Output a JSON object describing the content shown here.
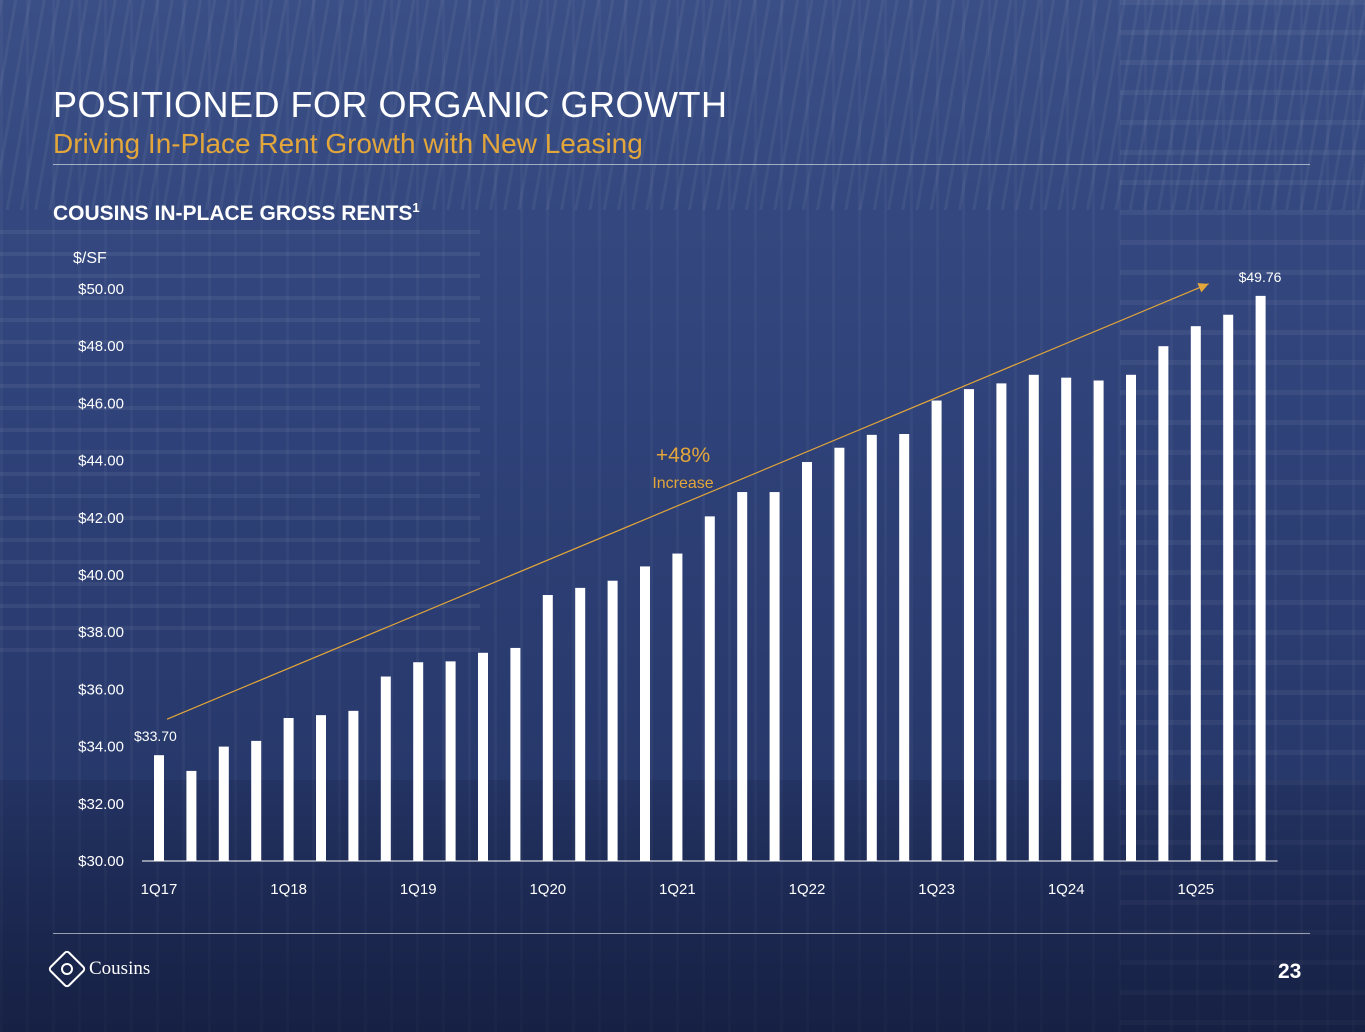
{
  "header": {
    "title": "POSITIONED FOR ORGANIC GROWTH",
    "subtitle": "Driving In-Place Rent Growth with New Leasing"
  },
  "footer": {
    "logo_text": "Cousins",
    "page_number": "23"
  },
  "colors": {
    "accent": "#e3a63a",
    "bar": "#ffffff",
    "text": "#ffffff"
  },
  "chart_data": {
    "type": "bar",
    "title": "COUSINS IN-PLACE GROSS RENTS",
    "title_footnote": "1",
    "ylabel": "$/SF",
    "ylim": [
      30,
      50
    ],
    "y_ticks": [
      "$30.00",
      "$32.00",
      "$34.00",
      "$36.00",
      "$38.00",
      "$40.00",
      "$42.00",
      "$44.00",
      "$46.00",
      "$48.00",
      "$50.00"
    ],
    "x_tick_labels": [
      "1Q17",
      "1Q18",
      "1Q19",
      "1Q20",
      "1Q21",
      "1Q22",
      "1Q23",
      "1Q24",
      "1Q25"
    ],
    "x_tick_every": 4,
    "grid": false,
    "values": [
      33.7,
      33.15,
      34.0,
      34.2,
      35.0,
      35.1,
      35.25,
      36.45,
      36.95,
      36.98,
      37.28,
      37.45,
      39.3,
      39.55,
      39.8,
      40.3,
      40.75,
      42.05,
      42.9,
      42.9,
      43.95,
      44.45,
      44.9,
      44.93,
      46.1,
      46.5,
      46.7,
      47.0,
      46.9,
      46.8,
      47.0,
      48.0,
      48.7,
      49.1,
      49.76
    ],
    "data_labels": [
      {
        "index": 0,
        "text": "$33.70"
      },
      {
        "index": 34,
        "text": "$49.76"
      }
    ],
    "annotation": {
      "value": "+48%",
      "text": "Increase",
      "from_index": 0,
      "to_index": 34
    }
  }
}
